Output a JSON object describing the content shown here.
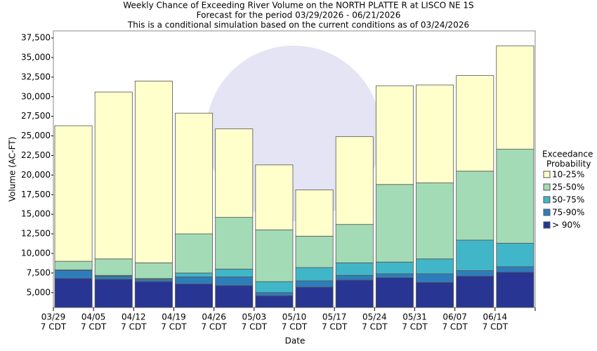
{
  "chart_data": {
    "type": "bar",
    "title": [
      "Weekly Chance of Exceeding River Volume on the NORTH PLATTE R at LISCO NE 1S",
      "Forecast for the period 03/29/2026 - 06/21/2026",
      "This is a conditional simulation based on the current conditions as of 03/24/2026"
    ],
    "x_label": "Date",
    "y_label": "Volume (AC-FT)",
    "categories": [
      "03/29",
      "04/05",
      "04/12",
      "04/19",
      "04/26",
      "05/03",
      "05/10",
      "05/17",
      "05/24",
      "05/31",
      "06/07",
      "06/14"
    ],
    "time_label": "7 CDT",
    "legend_title": [
      "Exceedance",
      "Probability"
    ],
    "series": [
      {
        "name": "> 90%",
        "color": "#283593",
        "values": [
          6800,
          6700,
          6400,
          6100,
          5900,
          4600,
          5700,
          6600,
          6900,
          6300,
          7100,
          7600
        ]
      },
      {
        "name": "75-90%",
        "color": "#2e7dbb",
        "values": [
          7850,
          7100,
          6700,
          7000,
          7000,
          5000,
          6500,
          7200,
          7400,
          7400,
          7800,
          8300
        ]
      },
      {
        "name": "50-75%",
        "color": "#41b6c8",
        "values": [
          7900,
          7200,
          6800,
          7500,
          8000,
          6400,
          8200,
          8800,
          8900,
          9300,
          11700,
          11300
        ]
      },
      {
        "name": "25-50%",
        "color": "#a3dbb6",
        "values": [
          9000,
          9300,
          8800,
          12500,
          14600,
          13000,
          12200,
          13700,
          18800,
          19000,
          20500,
          23300
        ]
      },
      {
        "name": "10-25%",
        "color": "#ffffcc",
        "values": [
          26300,
          30600,
          32000,
          27900,
          25900,
          21300,
          18100,
          24900,
          31400,
          31500,
          32700,
          36500
        ]
      }
    ],
    "ylim": [
      3100,
      38400
    ],
    "yticks": [
      {
        "value": 5000,
        "label": "5,000"
      },
      {
        "value": 7500,
        "label": "7,500"
      },
      {
        "value": 10000,
        "label": "10,000"
      },
      {
        "value": 12500,
        "label": "12,500"
      },
      {
        "value": 15000,
        "label": "15,000"
      },
      {
        "value": 17500,
        "label": "17,500"
      },
      {
        "value": 20000,
        "label": "20,000"
      },
      {
        "value": 22500,
        "label": "22,500"
      },
      {
        "value": 25000,
        "label": "25,000"
      },
      {
        "value": 27500,
        "label": "27,500"
      },
      {
        "value": 30000,
        "label": "30,000"
      },
      {
        "value": 32500,
        "label": "32,500"
      },
      {
        "value": 35000,
        "label": "35,000"
      },
      {
        "value": 37500,
        "label": "37,500"
      }
    ],
    "grid": false,
    "legend": "right"
  }
}
